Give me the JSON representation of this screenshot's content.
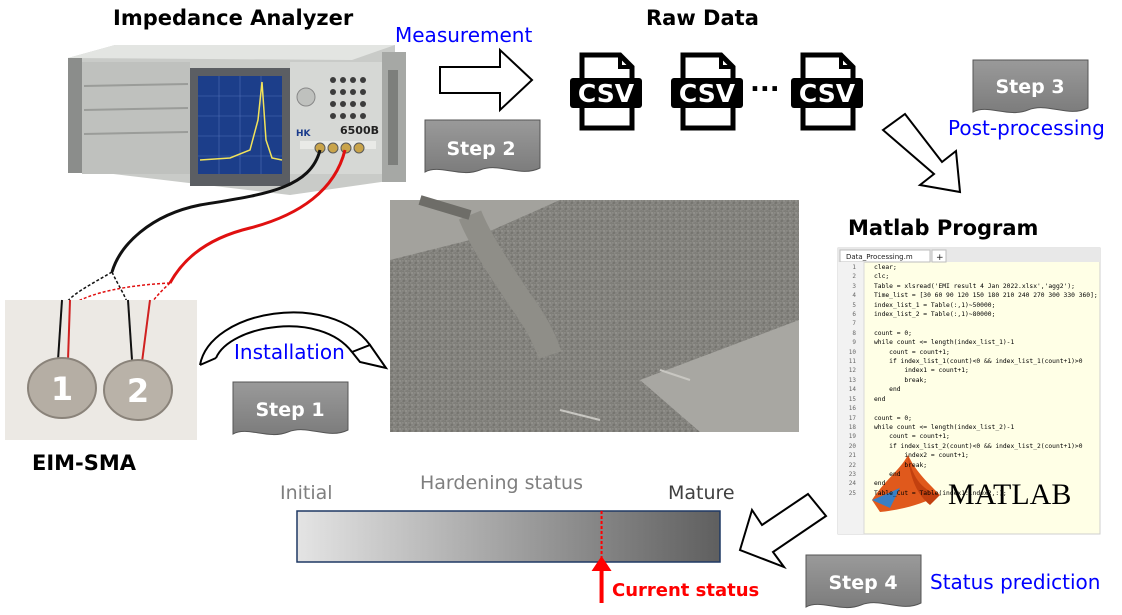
{
  "labels": {
    "analyzer_title": "Impedance Analyzer",
    "raw_data_title": "Raw Data",
    "matlab_title": "Matlab Program",
    "eim_title": "EIM-SMA",
    "measurement": "Measurement",
    "post_processing": "Post-processing",
    "installation": "Installation",
    "status_prediction": "Status prediction",
    "hardening_status": "Hardening status",
    "initial": "Initial",
    "mature": "Mature",
    "current_status": "Current status",
    "ellipsis": "..."
  },
  "steps": {
    "step1": "Step 1",
    "step2": "Step 2",
    "step3": "Step 3",
    "step4": "Step 4"
  },
  "csv": {
    "file1": "CSV",
    "file2": "CSV",
    "file3": "CSV"
  },
  "sensors": {
    "sensor1": "1",
    "sensor2": "2"
  },
  "device": {
    "model": "6500B"
  },
  "matlab_editor": {
    "tab_name": "Data_Processing.m",
    "tab_add": "+",
    "logo": "MATLAB",
    "lines": [
      "clear;",
      "clc;",
      "Table = xlsread('EMI result 4 Jan 2022.xlsx','agg2');",
      "Time_list = [30 60 90 120 150 180 210 240 270 300 330 360];",
      "index_list_1 = Table(:,1)~50000;",
      "index_list_2 = Table(:,1)~80000;",
      "",
      "count = 0;",
      "while count <= length(index_list_1)-1",
      "    count = count+1;",
      "    if index_list_1(count)<0 && index_list_1(count+1)>0",
      "        index1 = count+1;",
      "        break;",
      "    end",
      "end",
      "",
      "count = 0;",
      "while count <= length(index_list_2)-1",
      "    count = count+1;",
      "    if index_list_2(count)<0 && index_list_2(count+1)>0",
      "        index2 = count+1;",
      "        break;",
      "    end",
      "end",
      "Table_Cut = Table(index1:index2,:);"
    ]
  },
  "hardening_bar": {
    "current_fraction": 0.72
  },
  "colors": {
    "blue_text": "#0000ff",
    "red_marker": "#ff0000",
    "gray_text": "#7f7f7f",
    "step_fill": "#8c8c8c"
  }
}
